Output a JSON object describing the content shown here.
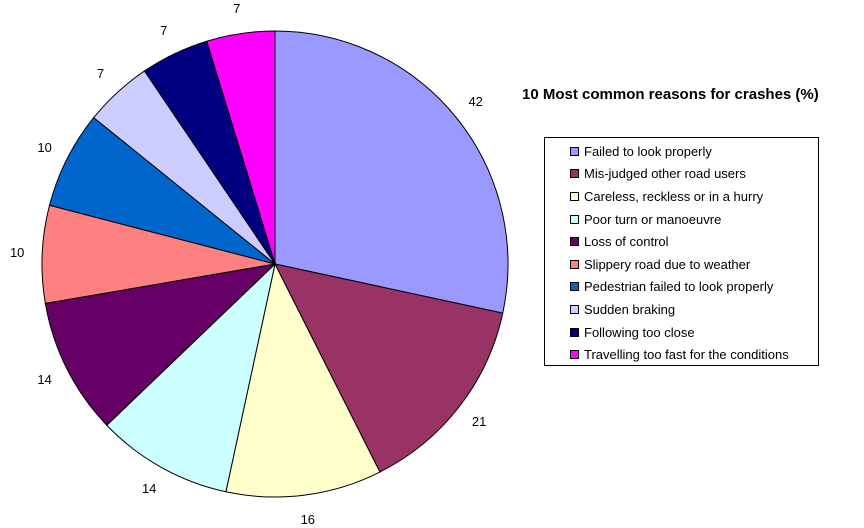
{
  "chart_data": {
    "type": "pie",
    "title": "10 Most common reasons for crashes (%)",
    "categories": [
      "Failed to look properly",
      "Mis-judged other road users",
      "Careless, reckless or in a hurry",
      "Poor turn or manoeuvre",
      "Loss of control",
      "Slippery road due to weather",
      "Pedestrian failed to look properly",
      "Sudden braking",
      "Following too close",
      "Travelling too fast for the conditions"
    ],
    "values": [
      42,
      21,
      16,
      14,
      14,
      10,
      10,
      7,
      7,
      7
    ],
    "colors": [
      "#9999FF",
      "#993366",
      "#FFFFCC",
      "#CCFFFF",
      "#660066",
      "#FF8080",
      "#0066CC",
      "#CCCCFF",
      "#000080",
      "#FF00FF"
    ],
    "legend_position": "right",
    "grid": false
  }
}
